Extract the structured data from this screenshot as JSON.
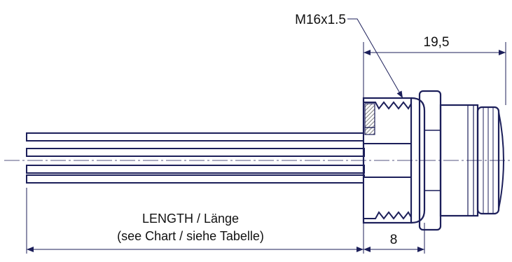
{
  "drawing": {
    "thread_label": "M16x1.5",
    "dim_flange_to_end": "19,5",
    "dim_thread_length": "8",
    "length_label_line1": "LENGTH / Länge",
    "length_label_line2": "(see Chart / siehe Tabelle)",
    "line_color": "#1c1f5a",
    "hatch_color": "#4a4a4a"
  }
}
